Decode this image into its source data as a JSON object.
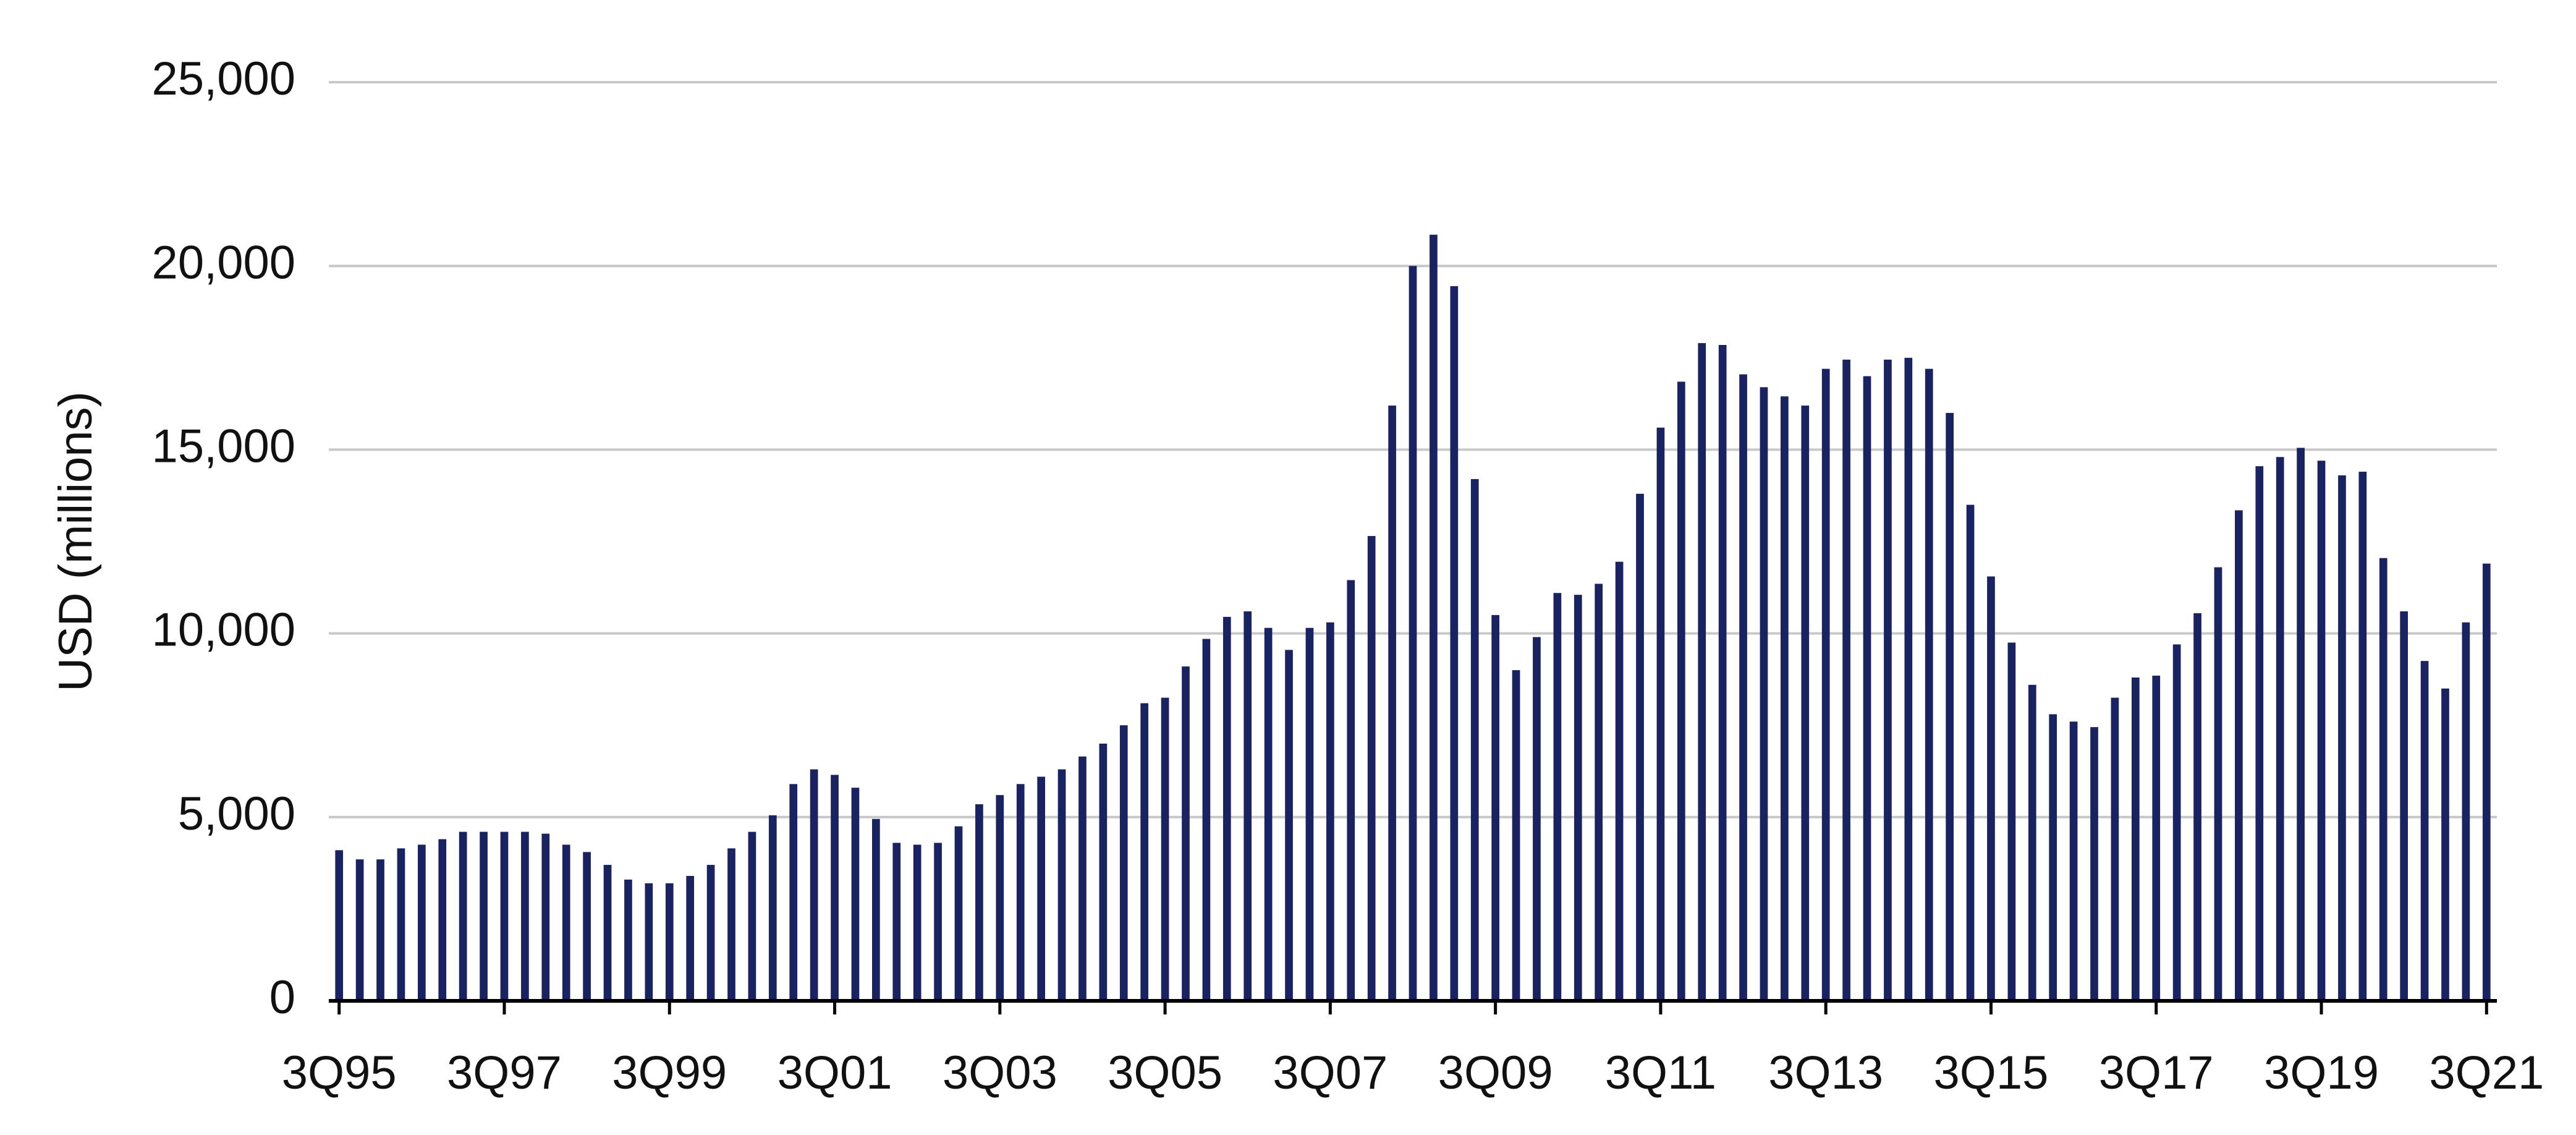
{
  "chart_data": {
    "type": "bar",
    "y_axis_label": "USD (millions)",
    "color": "#1a2361",
    "grid": true,
    "categories": [
      "3Q95",
      null,
      null,
      null,
      null,
      null,
      null,
      null,
      "3Q97",
      null,
      null,
      null,
      null,
      null,
      null,
      null,
      "3Q99",
      null,
      null,
      null,
      null,
      null,
      null,
      null,
      "3Q01",
      null,
      null,
      null,
      null,
      null,
      null,
      null,
      "3Q03",
      null,
      null,
      null,
      null,
      null,
      null,
      null,
      "3Q05",
      null,
      null,
      null,
      null,
      null,
      null,
      null,
      "3Q07",
      null,
      null,
      null,
      null,
      null,
      null,
      null,
      "3Q09",
      null,
      null,
      null,
      null,
      null,
      null,
      null,
      "3Q11",
      null,
      null,
      null,
      null,
      null,
      null,
      null,
      "3Q13",
      null,
      null,
      null,
      null,
      null,
      null,
      null,
      "3Q15",
      null,
      null,
      null,
      null,
      null,
      null,
      null,
      "3Q17",
      null,
      null,
      null,
      null,
      null,
      null,
      null,
      "3Q19",
      null,
      null,
      null,
      null,
      null,
      null,
      null,
      "3Q21"
    ],
    "values": [
      4100,
      3850,
      3850,
      4150,
      4250,
      4400,
      4600,
      4600,
      4600,
      4600,
      4550,
      4250,
      4050,
      3700,
      3300,
      3200,
      3200,
      3400,
      3700,
      4150,
      4600,
      5050,
      5900,
      6300,
      6150,
      5800,
      4950,
      4300,
      4250,
      4300,
      4750,
      5350,
      5600,
      5900,
      6100,
      6300,
      6650,
      7000,
      7500,
      8100,
      8250,
      9100,
      9850,
      10450,
      10600,
      10150,
      9550,
      10150,
      10300,
      11450,
      12650,
      16200,
      20000,
      20850,
      19450,
      14200,
      10500,
      9000,
      9900,
      11100,
      11050,
      11350,
      11950,
      13800,
      15600,
      16850,
      17900,
      17850,
      17050,
      16700,
      16450,
      16200,
      17200,
      17450,
      17000,
      17450,
      17500,
      17200,
      16000,
      13500,
      11550,
      9750,
      8600,
      7800,
      7600,
      7450,
      8250,
      8800,
      8850,
      9700,
      10550,
      11800,
      13350,
      14550,
      14800,
      15050,
      14700,
      14300,
      14400,
      12050,
      10600,
      9250,
      8500,
      10300,
      11900
    ],
    "ylim": [
      0,
      25000
    ],
    "yticks": [
      0,
      {
        "value": 5000,
        "label": "5,000"
      },
      {
        "value": 10000,
        "label": "10,000"
      },
      {
        "value": 15000,
        "label": "15,000"
      },
      {
        "value": 20000,
        "label": "20,000"
      },
      {
        "value": 25000,
        "label": "25,000"
      }
    ]
  }
}
